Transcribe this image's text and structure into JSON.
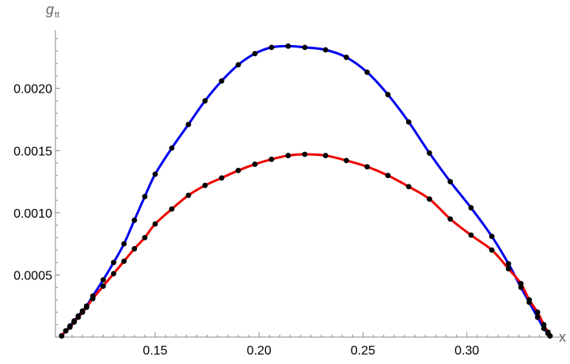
{
  "chart_data": {
    "type": "line",
    "xlabel": "x",
    "ylabel": "g",
    "ylabel_subscript": "tt",
    "xlim": [
      0.102,
      0.342
    ],
    "ylim": [
      0,
      0.00252
    ],
    "xticks": [
      0.15,
      0.2,
      0.25,
      0.3
    ],
    "xtick_labels": [
      "0.15",
      "0.20",
      "0.25",
      "0.30"
    ],
    "yticks": [
      0.0005,
      0.001,
      0.0015,
      0.002
    ],
    "ytick_labels": [
      "0.0005",
      "0.0010",
      "0.0015",
      "0.0020"
    ],
    "grid": false,
    "legend": "none",
    "series": [
      {
        "color": "#0000ee",
        "marker_color": "#000000",
        "x": [
          0.105,
          0.107,
          0.109,
          0.111,
          0.113,
          0.115,
          0.117,
          0.12,
          0.125,
          0.13,
          0.135,
          0.14,
          0.145,
          0.15,
          0.158,
          0.166,
          0.174,
          0.182,
          0.19,
          0.198,
          0.206,
          0.214,
          0.222,
          0.232,
          0.242,
          0.252,
          0.262,
          0.272,
          0.282,
          0.292,
          0.302,
          0.312,
          0.32,
          0.326,
          0.33,
          0.334,
          0.337,
          0.339,
          0.34
        ],
        "y": [
          1e-05,
          5e-05,
          9e-05,
          0.00013,
          0.00017,
          0.00021,
          0.00025,
          0.00033,
          0.00046,
          0.0006,
          0.00075,
          0.00094,
          0.00113,
          0.00131,
          0.00152,
          0.00171,
          0.0019,
          0.00206,
          0.00219,
          0.00228,
          0.00233,
          0.00234,
          0.00233,
          0.00231,
          0.00225,
          0.00213,
          0.00195,
          0.00173,
          0.00148,
          0.00125,
          0.00104,
          0.00081,
          0.00059,
          0.0004,
          0.00028,
          0.00016,
          7e-05,
          3e-05,
          1e-05
        ]
      },
      {
        "color": "#ee0000",
        "marker_color": "#000000",
        "x": [
          0.105,
          0.107,
          0.109,
          0.111,
          0.113,
          0.115,
          0.117,
          0.12,
          0.125,
          0.13,
          0.135,
          0.14,
          0.145,
          0.15,
          0.158,
          0.166,
          0.174,
          0.182,
          0.19,
          0.198,
          0.206,
          0.214,
          0.222,
          0.232,
          0.242,
          0.252,
          0.262,
          0.272,
          0.282,
          0.292,
          0.302,
          0.312,
          0.32,
          0.326,
          0.33,
          0.334,
          0.337,
          0.339,
          0.34
        ],
        "y": [
          1e-05,
          5e-05,
          8e-05,
          0.00012,
          0.00016,
          0.0002,
          0.00024,
          0.00031,
          0.00041,
          0.00051,
          0.00061,
          0.00071,
          0.0008,
          0.00091,
          0.00103,
          0.00114,
          0.00122,
          0.00128,
          0.00134,
          0.00139,
          0.00143,
          0.00146,
          0.00147,
          0.00146,
          0.00142,
          0.00137,
          0.0013,
          0.00121,
          0.00111,
          0.00095,
          0.00082,
          0.0007,
          0.00055,
          0.00043,
          0.0003,
          0.0002,
          0.0001,
          4e-05,
          1e-05
        ]
      }
    ]
  }
}
